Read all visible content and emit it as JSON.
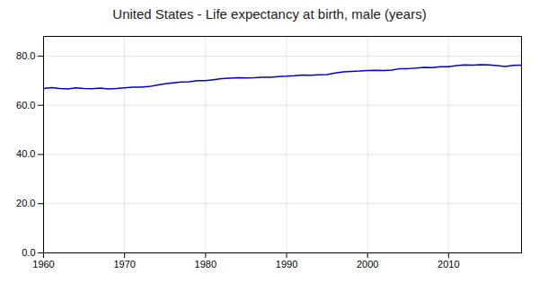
{
  "chart_data": {
    "type": "line",
    "title": "United States - Life expectancy at birth, male (years)",
    "x": [
      1960,
      1961,
      1962,
      1963,
      1964,
      1965,
      1966,
      1967,
      1968,
      1969,
      1970,
      1971,
      1972,
      1973,
      1974,
      1975,
      1976,
      1977,
      1978,
      1979,
      1980,
      1981,
      1982,
      1983,
      1984,
      1985,
      1986,
      1987,
      1988,
      1989,
      1990,
      1991,
      1992,
      1993,
      1994,
      1995,
      1996,
      1997,
      1998,
      1999,
      2000,
      2001,
      2002,
      2003,
      2004,
      2005,
      2006,
      2007,
      2008,
      2009,
      2010,
      2011,
      2012,
      2013,
      2014,
      2015,
      2016,
      2017,
      2018,
      2019
    ],
    "values": [
      66.8,
      67.2,
      66.8,
      66.6,
      67.1,
      66.8,
      66.7,
      67.0,
      66.6,
      66.8,
      67.1,
      67.4,
      67.4,
      67.6,
      68.2,
      68.7,
      69.1,
      69.5,
      69.6,
      70.0,
      70.0,
      70.4,
      70.8,
      71.0,
      71.2,
      71.1,
      71.2,
      71.4,
      71.4,
      71.7,
      71.8,
      72.0,
      72.3,
      72.2,
      72.4,
      72.5,
      73.1,
      73.6,
      73.8,
      73.9,
      74.1,
      74.2,
      74.1,
      74.3,
      74.9,
      74.9,
      75.1,
      75.4,
      75.3,
      75.7,
      75.7,
      76.1,
      76.4,
      76.3,
      76.5,
      76.4,
      76.1,
      75.8,
      76.2,
      76.3
    ],
    "color": "#0000cc",
    "xlim": [
      1960,
      2019
    ],
    "ylim": [
      0,
      88
    ],
    "xticks": [
      1960,
      1970,
      1980,
      1990,
      2000,
      2010
    ],
    "yticks": [
      {
        "value": 0,
        "label": "0.0"
      },
      {
        "value": 20,
        "label": "20.0"
      },
      {
        "value": 40,
        "label": "40.0"
      },
      {
        "value": 60,
        "label": "60.0"
      },
      {
        "value": 80,
        "label": "80.0"
      }
    ],
    "grid": true
  }
}
